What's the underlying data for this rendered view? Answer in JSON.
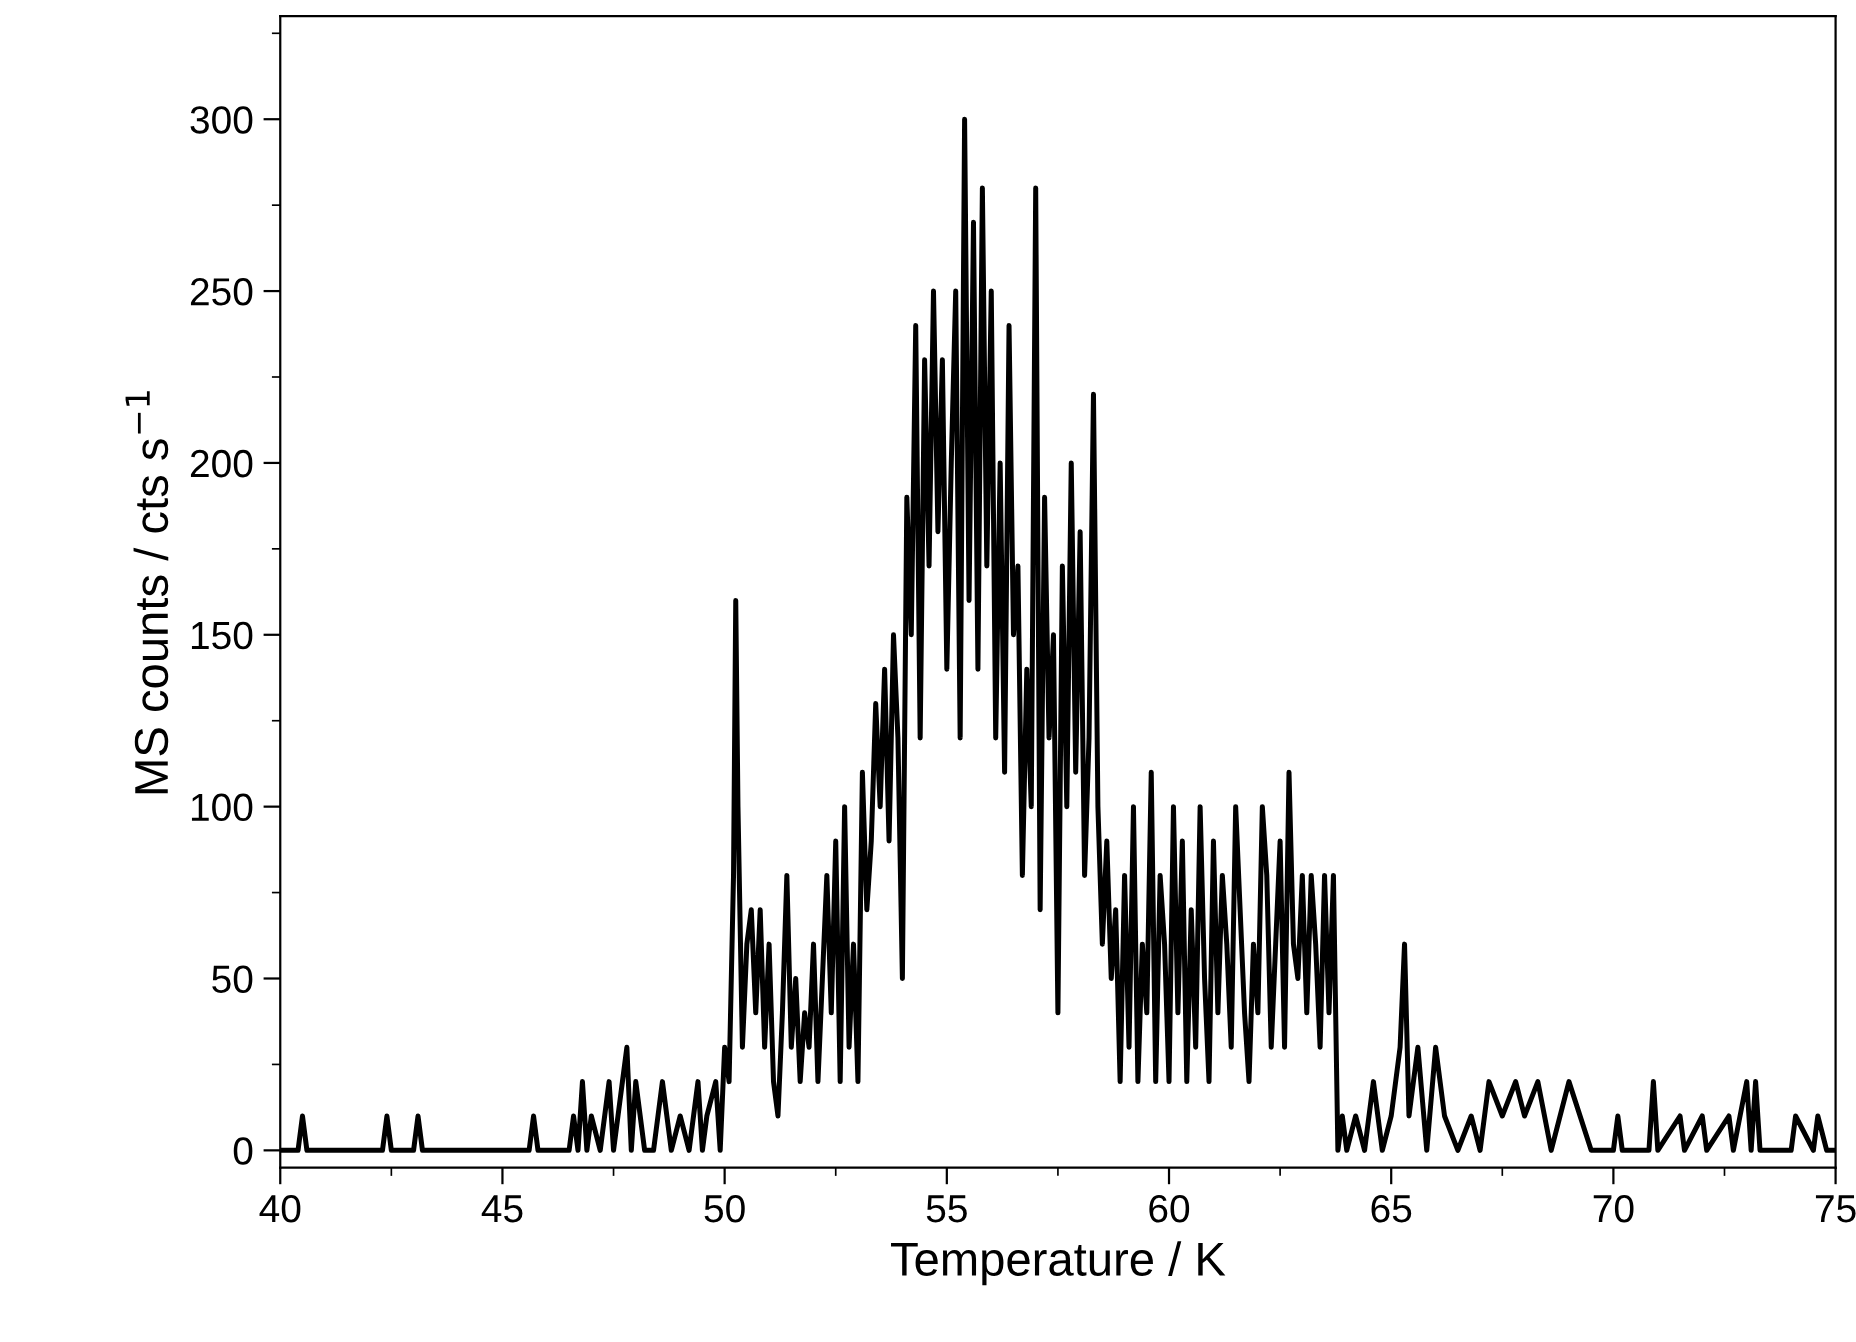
{
  "chart_data": {
    "type": "line",
    "xlabel": "Temperature / K",
    "ylabel": "MS counts / cts s$^{−1}$",
    "xlim": [
      40,
      75
    ],
    "xticks": [
      40,
      45,
      50,
      55,
      60,
      65,
      70,
      75
    ],
    "ylim": [
      -5,
      330
    ],
    "yticks": [
      0,
      50,
      100,
      150,
      200,
      250,
      300
    ],
    "grid": false,
    "legend": false,
    "marker": "none",
    "line_style": "solid",
    "series": [
      {
        "color": "#000000",
        "x": [
          40,
          40.4,
          40.5,
          40.6,
          42.3,
          42.4,
          42.5,
          43.0,
          43.1,
          43.2,
          45.6,
          45.7,
          45.8,
          46.5,
          46.6,
          46.7,
          46.8,
          46.9,
          47.0,
          47.2,
          47.4,
          47.5,
          47.6,
          47.7,
          47.8,
          47.9,
          48.0,
          48.2,
          48.4,
          48.5,
          48.6,
          48.8,
          49.0,
          49.2,
          49.4,
          49.5,
          49.6,
          49.8,
          49.9,
          50.0,
          50.1,
          50.2,
          50.25,
          50.3,
          50.4,
          50.5,
          50.6,
          50.7,
          50.8,
          50.9,
          51.0,
          51.1,
          51.2,
          51.3,
          51.4,
          51.5,
          51.6,
          51.7,
          51.8,
          51.9,
          52.0,
          52.1,
          52.2,
          52.3,
          52.4,
          52.5,
          52.6,
          52.7,
          52.8,
          52.9,
          53.0,
          53.1,
          53.2,
          53.3,
          53.4,
          53.5,
          53.6,
          53.7,
          53.8,
          53.9,
          54.0,
          54.1,
          54.2,
          54.3,
          54.4,
          54.5,
          54.6,
          54.7,
          54.8,
          54.9,
          55.0,
          55.1,
          55.2,
          55.3,
          55.4,
          55.5,
          55.6,
          55.7,
          55.8,
          55.9,
          56.0,
          56.1,
          56.2,
          56.3,
          56.4,
          56.5,
          56.6,
          56.7,
          56.8,
          56.9,
          57.0,
          57.1,
          57.2,
          57.3,
          57.4,
          57.5,
          57.6,
          57.7,
          57.8,
          57.9,
          58.0,
          58.1,
          58.2,
          58.3,
          58.4,
          58.5,
          58.6,
          58.7,
          58.8,
          58.9,
          59.0,
          59.1,
          59.2,
          59.3,
          59.4,
          59.5,
          59.6,
          59.7,
          59.8,
          59.9,
          60.0,
          60.1,
          60.2,
          60.3,
          60.4,
          60.5,
          60.6,
          60.7,
          60.8,
          60.9,
          61.0,
          61.1,
          61.2,
          61.3,
          61.4,
          61.5,
          61.6,
          61.7,
          61.8,
          61.9,
          62.0,
          62.1,
          62.2,
          62.3,
          62.4,
          62.5,
          62.6,
          62.7,
          62.8,
          62.9,
          63.0,
          63.1,
          63.2,
          63.3,
          63.4,
          63.5,
          63.6,
          63.7,
          63.8,
          63.9,
          64.0,
          64.2,
          64.4,
          64.6,
          64.8,
          65.0,
          65.2,
          65.3,
          65.4,
          65.6,
          65.8,
          66.0,
          66.2,
          66.5,
          66.8,
          67.0,
          67.2,
          67.5,
          67.8,
          68.0,
          68.3,
          68.6,
          69.0,
          69.5,
          70.0,
          70.1,
          70.2,
          70.8,
          70.9,
          71.0,
          71.5,
          71.6,
          72.0,
          72.1,
          72.6,
          72.7,
          73.0,
          73.1,
          73.2,
          73.3,
          74.0,
          74.1,
          74.5,
          74.6,
          74.8,
          75.0
        ],
        "values": [
          0,
          0,
          10,
          0,
          0,
          10,
          0,
          0,
          10,
          0,
          0,
          10,
          0,
          0,
          10,
          0,
          20,
          0,
          10,
          0,
          20,
          0,
          10,
          20,
          30,
          0,
          20,
          0,
          0,
          10,
          20,
          0,
          10,
          0,
          20,
          0,
          10,
          20,
          0,
          30,
          20,
          80,
          160,
          100,
          30,
          60,
          70,
          40,
          70,
          30,
          60,
          20,
          10,
          40,
          80,
          30,
          50,
          20,
          40,
          30,
          60,
          20,
          50,
          80,
          40,
          90,
          20,
          100,
          30,
          60,
          20,
          110,
          70,
          90,
          130,
          100,
          140,
          90,
          150,
          120,
          50,
          190,
          150,
          240,
          120,
          230,
          170,
          250,
          180,
          230,
          140,
          200,
          250,
          120,
          300,
          160,
          270,
          140,
          280,
          170,
          250,
          120,
          200,
          110,
          240,
          150,
          170,
          80,
          140,
          100,
          280,
          70,
          190,
          120,
          150,
          40,
          170,
          100,
          200,
          110,
          180,
          80,
          120,
          220,
          100,
          60,
          90,
          50,
          70,
          20,
          80,
          30,
          100,
          20,
          60,
          40,
          110,
          20,
          80,
          60,
          20,
          100,
          40,
          90,
          20,
          70,
          30,
          100,
          50,
          20,
          90,
          40,
          80,
          60,
          30,
          100,
          70,
          40,
          20,
          60,
          40,
          100,
          80,
          30,
          60,
          90,
          30,
          110,
          60,
          50,
          80,
          40,
          80,
          60,
          30,
          80,
          40,
          80,
          0,
          10,
          0,
          10,
          0,
          20,
          0,
          10,
          30,
          60,
          10,
          30,
          0,
          30,
          10,
          0,
          10,
          0,
          20,
          10,
          20,
          10,
          20,
          0,
          20,
          0,
          0,
          10,
          0,
          0,
          20,
          0,
          10,
          0,
          10,
          0,
          10,
          0,
          20,
          0,
          20,
          0,
          0,
          10,
          0,
          10,
          0,
          0
        ]
      }
    ]
  }
}
